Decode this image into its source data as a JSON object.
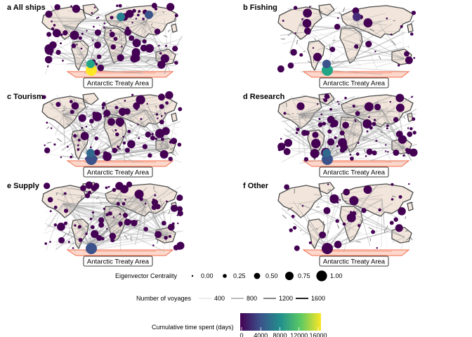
{
  "panels": [
    {
      "id": "a",
      "title": "a All ships",
      "connectivity": "dense",
      "hub_colors": [
        "#fde725",
        "#21a585",
        "#27808e",
        "#3b528b"
      ]
    },
    {
      "id": "b",
      "title": "b Fishing",
      "connectivity": "sparse",
      "hub_colors": [
        "#21a585",
        "#3b528b",
        "#472c7a"
      ]
    },
    {
      "id": "c",
      "title": "c Tourism",
      "connectivity": "dense",
      "hub_colors": [
        "#3b528b",
        "#31688e"
      ]
    },
    {
      "id": "d",
      "title": "d Research",
      "connectivity": "dense",
      "hub_colors": [
        "#3b528b",
        "#31688e"
      ]
    },
    {
      "id": "e",
      "title": "e Supply",
      "connectivity": "dense",
      "hub_colors": [
        "#3b528b"
      ]
    },
    {
      "id": "f",
      "title": "f Other",
      "connectivity": "sparse",
      "hub_colors": [
        "#440154"
      ]
    }
  ],
  "map_label": "Antarctic Treaty Area",
  "legend": {
    "centrality": {
      "title": "Eigenvector Centrality",
      "values": [
        "0.00",
        "0.25",
        "0.50",
        "0.75",
        "1.00"
      ]
    },
    "voyages": {
      "title": "Number of voyages",
      "values": [
        "400",
        "800",
        "1200",
        "1600"
      ]
    },
    "time": {
      "title": "Cumulative time spent (days)",
      "ticks": [
        "0",
        "4000",
        "8000",
        "12000",
        "16000"
      ],
      "colors": [
        "#440154",
        "#3b528b",
        "#21908d",
        "#5dc963",
        "#fde725"
      ]
    }
  },
  "colors": {
    "land": "#f2e6dc",
    "coast": "#4d4d4d",
    "ata": "#f26b4a",
    "ata_fill": "#fcd8cc",
    "route": "#9a9a9a",
    "node": "#440154"
  }
}
